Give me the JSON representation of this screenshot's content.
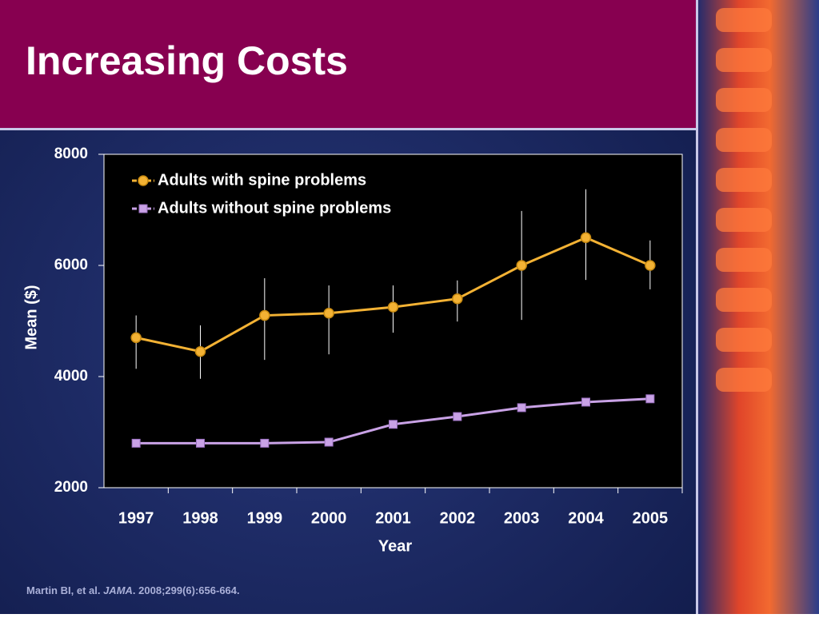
{
  "slide": {
    "title": "Increasing Costs",
    "citation": [
      "Martin BI, et al. ",
      "JAMA",
      ". 2008;299(6):656-664."
    ]
  },
  "chart_data": {
    "type": "line",
    "x_label": "Year",
    "y_label": "Mean ($)",
    "categories": [
      "1997",
      "1998",
      "1999",
      "2000",
      "2001",
      "2002",
      "2003",
      "2004",
      "2005"
    ],
    "series": [
      {
        "name": "Adults with spine problems",
        "color": "#f3b234",
        "marker": "circle",
        "values": [
          4700,
          4450,
          5100,
          5140,
          5250,
          5400,
          6000,
          6500,
          6000
        ],
        "lower": [
          4140,
          3960,
          4300,
          4400,
          4790,
          4990,
          5020,
          5740,
          5570
        ],
        "upper": [
          5100,
          4920,
          5770,
          5640,
          5640,
          5730,
          6980,
          7370,
          6450
        ]
      },
      {
        "name": "Adults without spine problems",
        "color": "#c9a2e6",
        "marker": "square",
        "values": [
          2800,
          2800,
          2800,
          2820,
          3140,
          3280,
          3440,
          3540,
          3600
        ]
      }
    ],
    "ylim": [
      2000,
      8000
    ],
    "yticks": [
      2000,
      4000,
      6000,
      8000
    ],
    "legend": "upper-left"
  }
}
